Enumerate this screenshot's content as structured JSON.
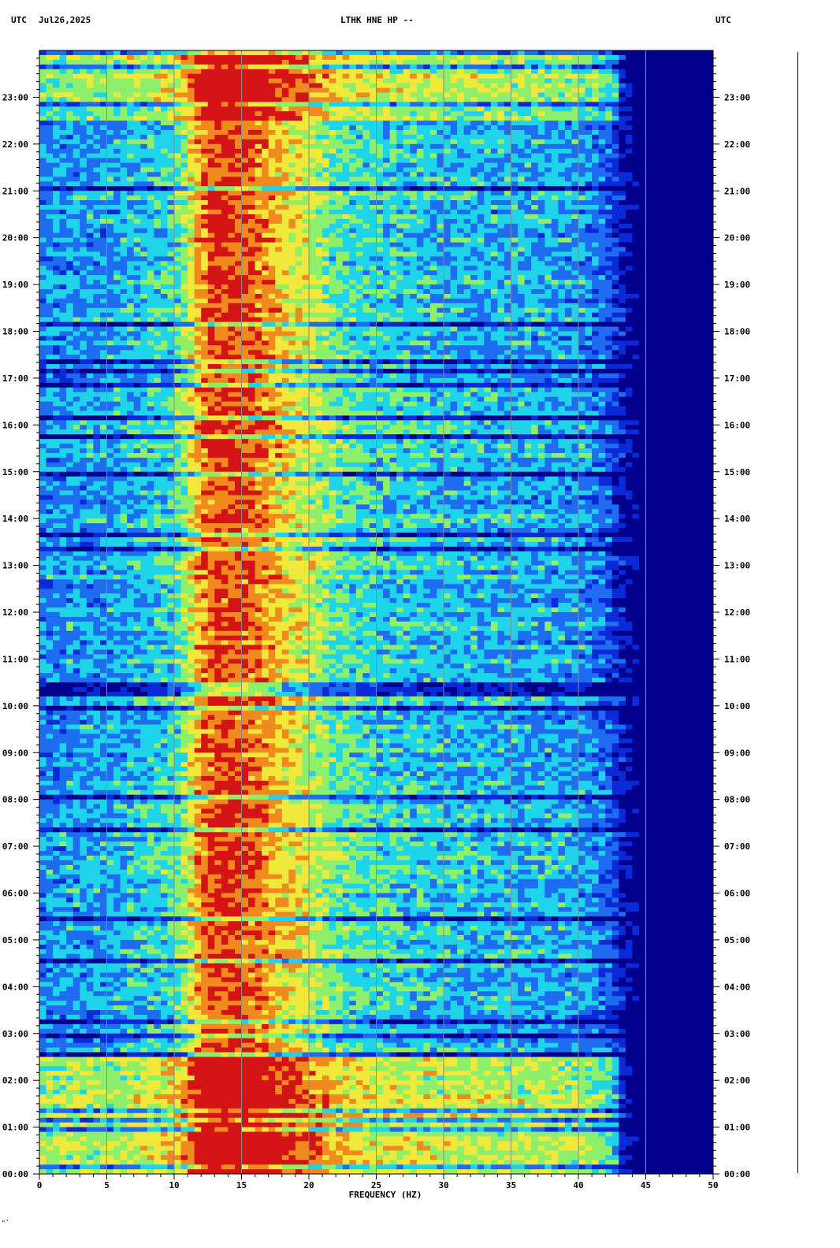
{
  "header": {
    "left_tz": "UTC",
    "date": "Jul26,2025",
    "station": "LTHK HNE HP --",
    "right_tz": "UTC"
  },
  "footer": {
    "corner_mark": "\"ʽ"
  },
  "chart_data": {
    "type": "heatmap",
    "title": "LTHK HNE HP --",
    "subtitle": "Jul26,2025",
    "xlabel": "FREQUENCY (HZ)",
    "ylabel": "UTC",
    "xlim": [
      0,
      50
    ],
    "ylim": [
      0,
      24
    ],
    "x_ticks": [
      0,
      5,
      10,
      15,
      20,
      25,
      30,
      35,
      40,
      45,
      50
    ],
    "x_tick_labels": [
      "0",
      "5",
      "10",
      "15",
      "20",
      "25",
      "30",
      "35",
      "40",
      "45",
      "50"
    ],
    "y_ticks": [
      0,
      1,
      2,
      3,
      4,
      5,
      6,
      7,
      8,
      9,
      10,
      11,
      12,
      13,
      14,
      15,
      16,
      17,
      18,
      19,
      20,
      21,
      22,
      23
    ],
    "y_tick_labels": [
      "00:00",
      "01:00",
      "02:00",
      "03:00",
      "04:00",
      "05:00",
      "06:00",
      "07:00",
      "08:00",
      "09:00",
      "10:00",
      "11:00",
      "12:00",
      "13:00",
      "14:00",
      "15:00",
      "16:00",
      "17:00",
      "18:00",
      "19:00",
      "20:00",
      "21:00",
      "22:00",
      "23:00"
    ],
    "y_time_unit": "hours UTC",
    "gridlines_x": [
      5,
      10,
      15,
      20,
      25,
      30,
      35,
      40,
      45
    ],
    "colormap": [
      "#00008c",
      "#0a2ad8",
      "#1e6cf0",
      "#1fd4e8",
      "#8ef06a",
      "#f0e83a",
      "#f08a1e",
      "#d41414"
    ],
    "background_color": "#00008c",
    "high_energy_band_hz": [
      11,
      20
    ],
    "energy_cutoff_hz": 43,
    "energy_profile": {
      "freq_hz": [
        0,
        5,
        10,
        11,
        12,
        13,
        14,
        15,
        16,
        18,
        20,
        22,
        25,
        30,
        35,
        40,
        42,
        43,
        44,
        45,
        50
      ],
      "level": [
        0.35,
        0.38,
        0.48,
        0.6,
        0.82,
        0.9,
        0.9,
        0.88,
        0.85,
        0.72,
        0.64,
        0.52,
        0.46,
        0.42,
        0.4,
        0.38,
        0.3,
        0.18,
        0.05,
        0.0,
        0.0
      ]
    },
    "elevated_periods_utc": [
      {
        "start_hour": 0,
        "end_hour": 2.5,
        "note_level": 0.22
      },
      {
        "start_hour": 22.5,
        "end_hour": 24,
        "note_level": 0.18
      }
    ]
  }
}
